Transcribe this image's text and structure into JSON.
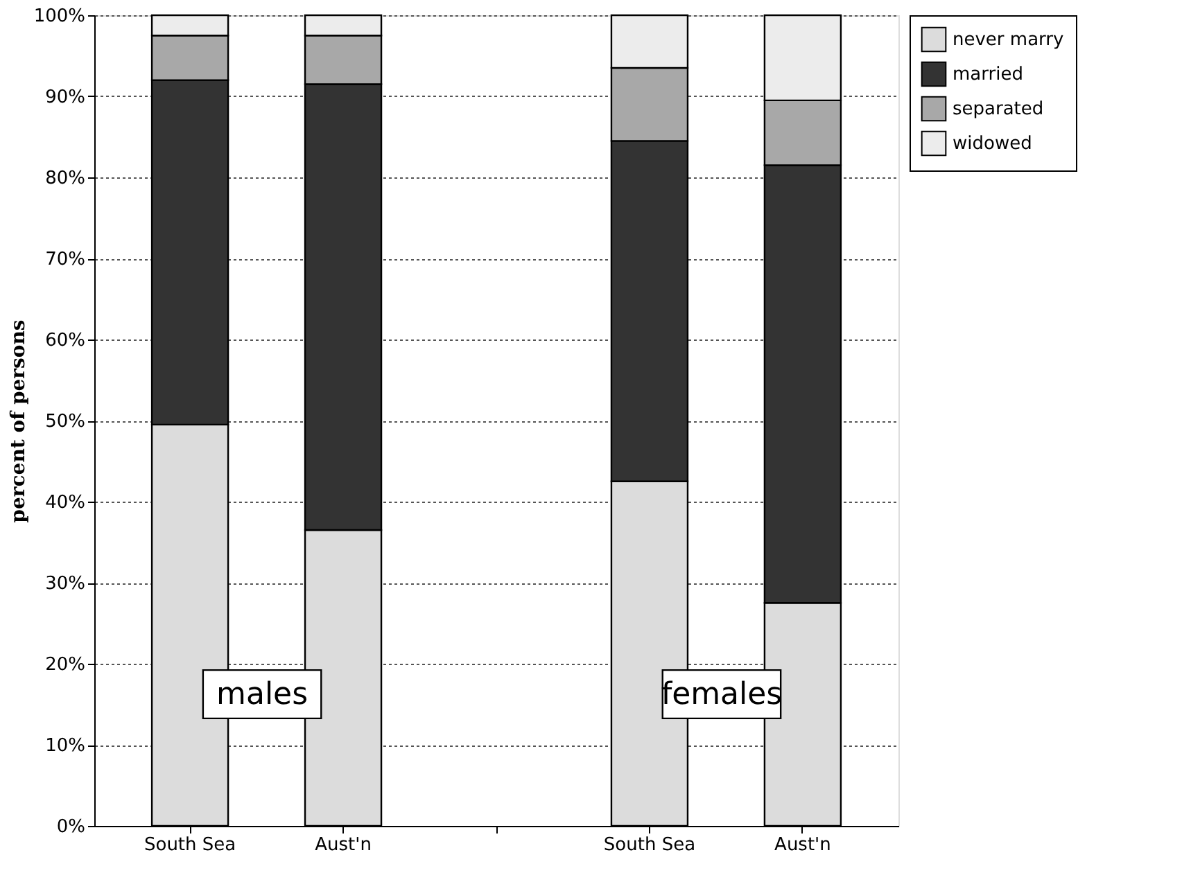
{
  "chart_data": {
    "type": "bar",
    "stacked": true,
    "ylabel": "percent of persons",
    "categories": [
      "South Sea",
      "Aust'n",
      "South Sea",
      "Aust'n"
    ],
    "series": [
      {
        "name": "never marry",
        "color": "#dcdcdc",
        "values": [
          49.5,
          36.5,
          42.5,
          27.5
        ]
      },
      {
        "name": "married",
        "color": "#333333",
        "values": [
          42.5,
          55,
          42,
          54
        ]
      },
      {
        "name": "separated",
        "color": "#a8a8a8",
        "values": [
          5.5,
          6,
          9,
          8
        ]
      },
      {
        "name": "widowed",
        "color": "#ececec",
        "values": [
          2.5,
          2.5,
          6.5,
          10.5
        ]
      }
    ],
    "ylim": [
      0,
      100
    ],
    "yticks": [
      {
        "value": 0,
        "label": "0%"
      },
      {
        "value": 10,
        "label": "10%"
      },
      {
        "value": 20,
        "label": "20%"
      },
      {
        "value": 30,
        "label": "30%"
      },
      {
        "value": 40,
        "label": "40%"
      },
      {
        "value": 50,
        "label": "50%"
      },
      {
        "value": 60,
        "label": "60%"
      },
      {
        "value": 70,
        "label": "70%"
      },
      {
        "value": 80,
        "label": "80%"
      },
      {
        "value": 90,
        "label": "90%"
      },
      {
        "value": 100,
        "label": "100%"
      }
    ],
    "grid": "y",
    "legend": "top right",
    "annotations": [
      "males",
      "females"
    ]
  }
}
